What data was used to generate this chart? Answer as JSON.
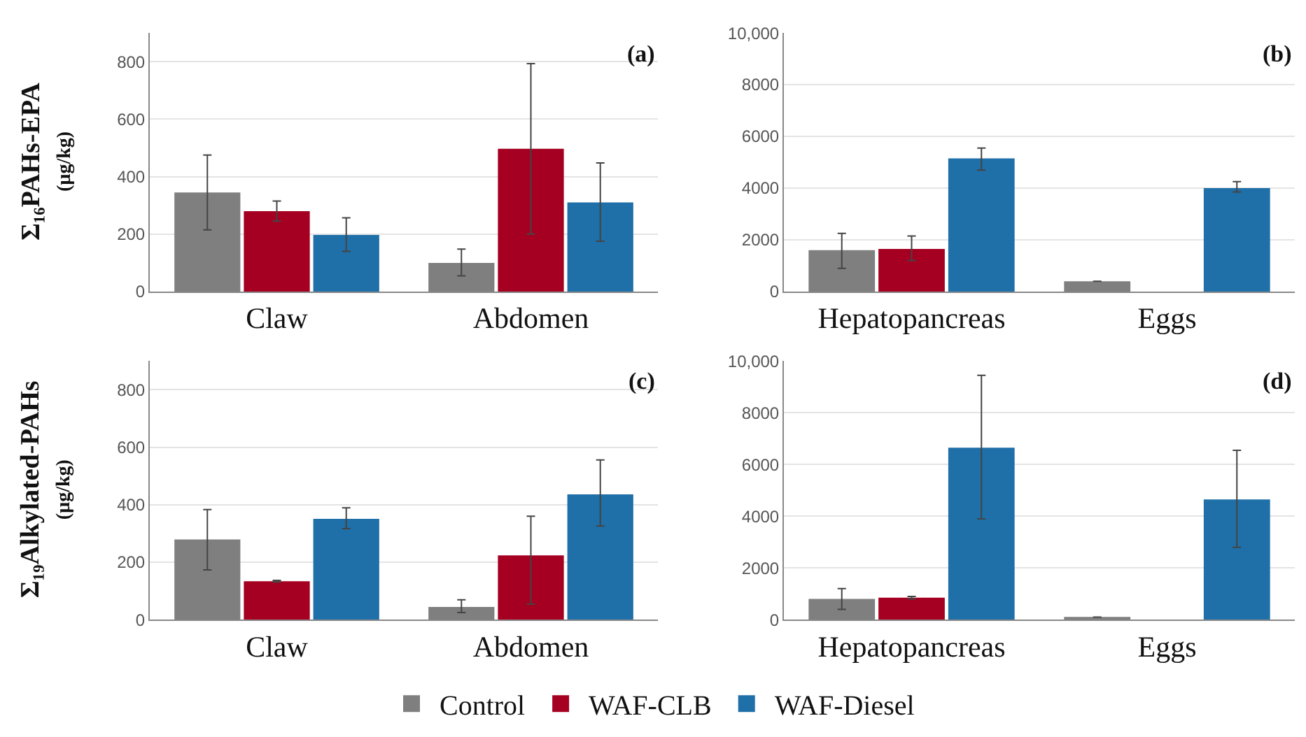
{
  "chart_data": [
    {
      "type": "bar",
      "ylabel": "Σ₁₆PAHs-EPA\n(µg/kg)",
      "annotations": [
        "(a)"
      ],
      "categories": [
        "Claw",
        "Abdomen"
      ],
      "ylim": [
        0,
        900
      ],
      "yticks": [
        0,
        200,
        400,
        600,
        800
      ],
      "grid": "y",
      "legend": "bottom",
      "series": [
        {
          "name": "Control",
          "color": "#7f7f7f",
          "values": [
            345,
            100
          ],
          "errors": [
            [
              215,
              475
            ],
            [
              55,
              148
            ]
          ]
        },
        {
          "name": "WAF-CLB",
          "color": "#a50021",
          "values": [
            280,
            497
          ],
          "errors": [
            [
              245,
              315
            ],
            [
              200,
              793
            ]
          ]
        },
        {
          "name": "WAF-Diesel",
          "color": "#1f6fa8",
          "values": [
            197,
            310
          ],
          "errors": [
            [
              140,
              257
            ],
            [
              175,
              448
            ]
          ]
        }
      ]
    },
    {
      "type": "bar",
      "annotations": [
        "(b)"
      ],
      "categories": [
        "Hepatopancreas",
        "Eggs"
      ],
      "ylim": [
        0,
        10000
      ],
      "yticks": [
        0,
        2000,
        4000,
        6000,
        8000,
        {
          "value": 10000,
          "label": "10,000"
        }
      ],
      "grid": "y",
      "series": [
        {
          "color": "#7f7f7f",
          "values": [
            1600,
            400
          ],
          "errors": [
            [
              900,
              2250
            ],
            null
          ]
        },
        {
          "color": "#a50021",
          "values": [
            1650,
            null
          ],
          "errors": [
            [
              1200,
              2150
            ],
            null
          ]
        },
        {
          "color": "#1f6fa8",
          "values": [
            5150,
            4000
          ],
          "errors": [
            [
              4700,
              5550
            ],
            [
              3850,
              4250
            ]
          ]
        }
      ]
    },
    {
      "type": "bar",
      "ylabel": "Σ₁₉Alkylated-PAHs\n(µg/kg)",
      "annotations": [
        "(c)"
      ],
      "categories": [
        "Claw",
        "Abdomen"
      ],
      "ylim": [
        0,
        900
      ],
      "yticks": [
        0,
        200,
        400,
        600,
        800
      ],
      "grid": "y",
      "series": [
        {
          "color": "#7f7f7f",
          "values": [
            279,
            44
          ],
          "errors": [
            [
              173,
              383
            ],
            [
              25,
              69
            ]
          ]
        },
        {
          "color": "#a50021",
          "values": [
            134,
            224
          ],
          "errors": [
            [
              131,
              137
            ],
            [
              54,
              360
            ]
          ]
        },
        {
          "color": "#1f6fa8",
          "values": [
            351,
            436
          ],
          "errors": [
            [
              317,
              389
            ],
            [
              326,
              556
            ]
          ]
        }
      ]
    },
    {
      "type": "bar",
      "annotations": [
        "(d)"
      ],
      "categories": [
        "Hepatopancreas",
        "Eggs"
      ],
      "ylim": [
        0,
        10000
      ],
      "yticks": [
        0,
        2000,
        4000,
        6000,
        8000,
        {
          "value": 10000,
          "label": "10,000"
        }
      ],
      "grid": "y",
      "series": [
        {
          "color": "#7f7f7f",
          "values": [
            800,
            100
          ],
          "errors": [
            [
              400,
              1200
            ],
            null
          ]
        },
        {
          "color": "#a50021",
          "values": [
            850,
            null
          ],
          "errors": [
            [
              800,
              900
            ],
            null
          ]
        },
        {
          "color": "#1f6fa8",
          "values": [
            6650,
            4650
          ],
          "errors": [
            [
              3900,
              9450
            ],
            [
              2800,
              6550
            ]
          ]
        }
      ]
    }
  ]
}
